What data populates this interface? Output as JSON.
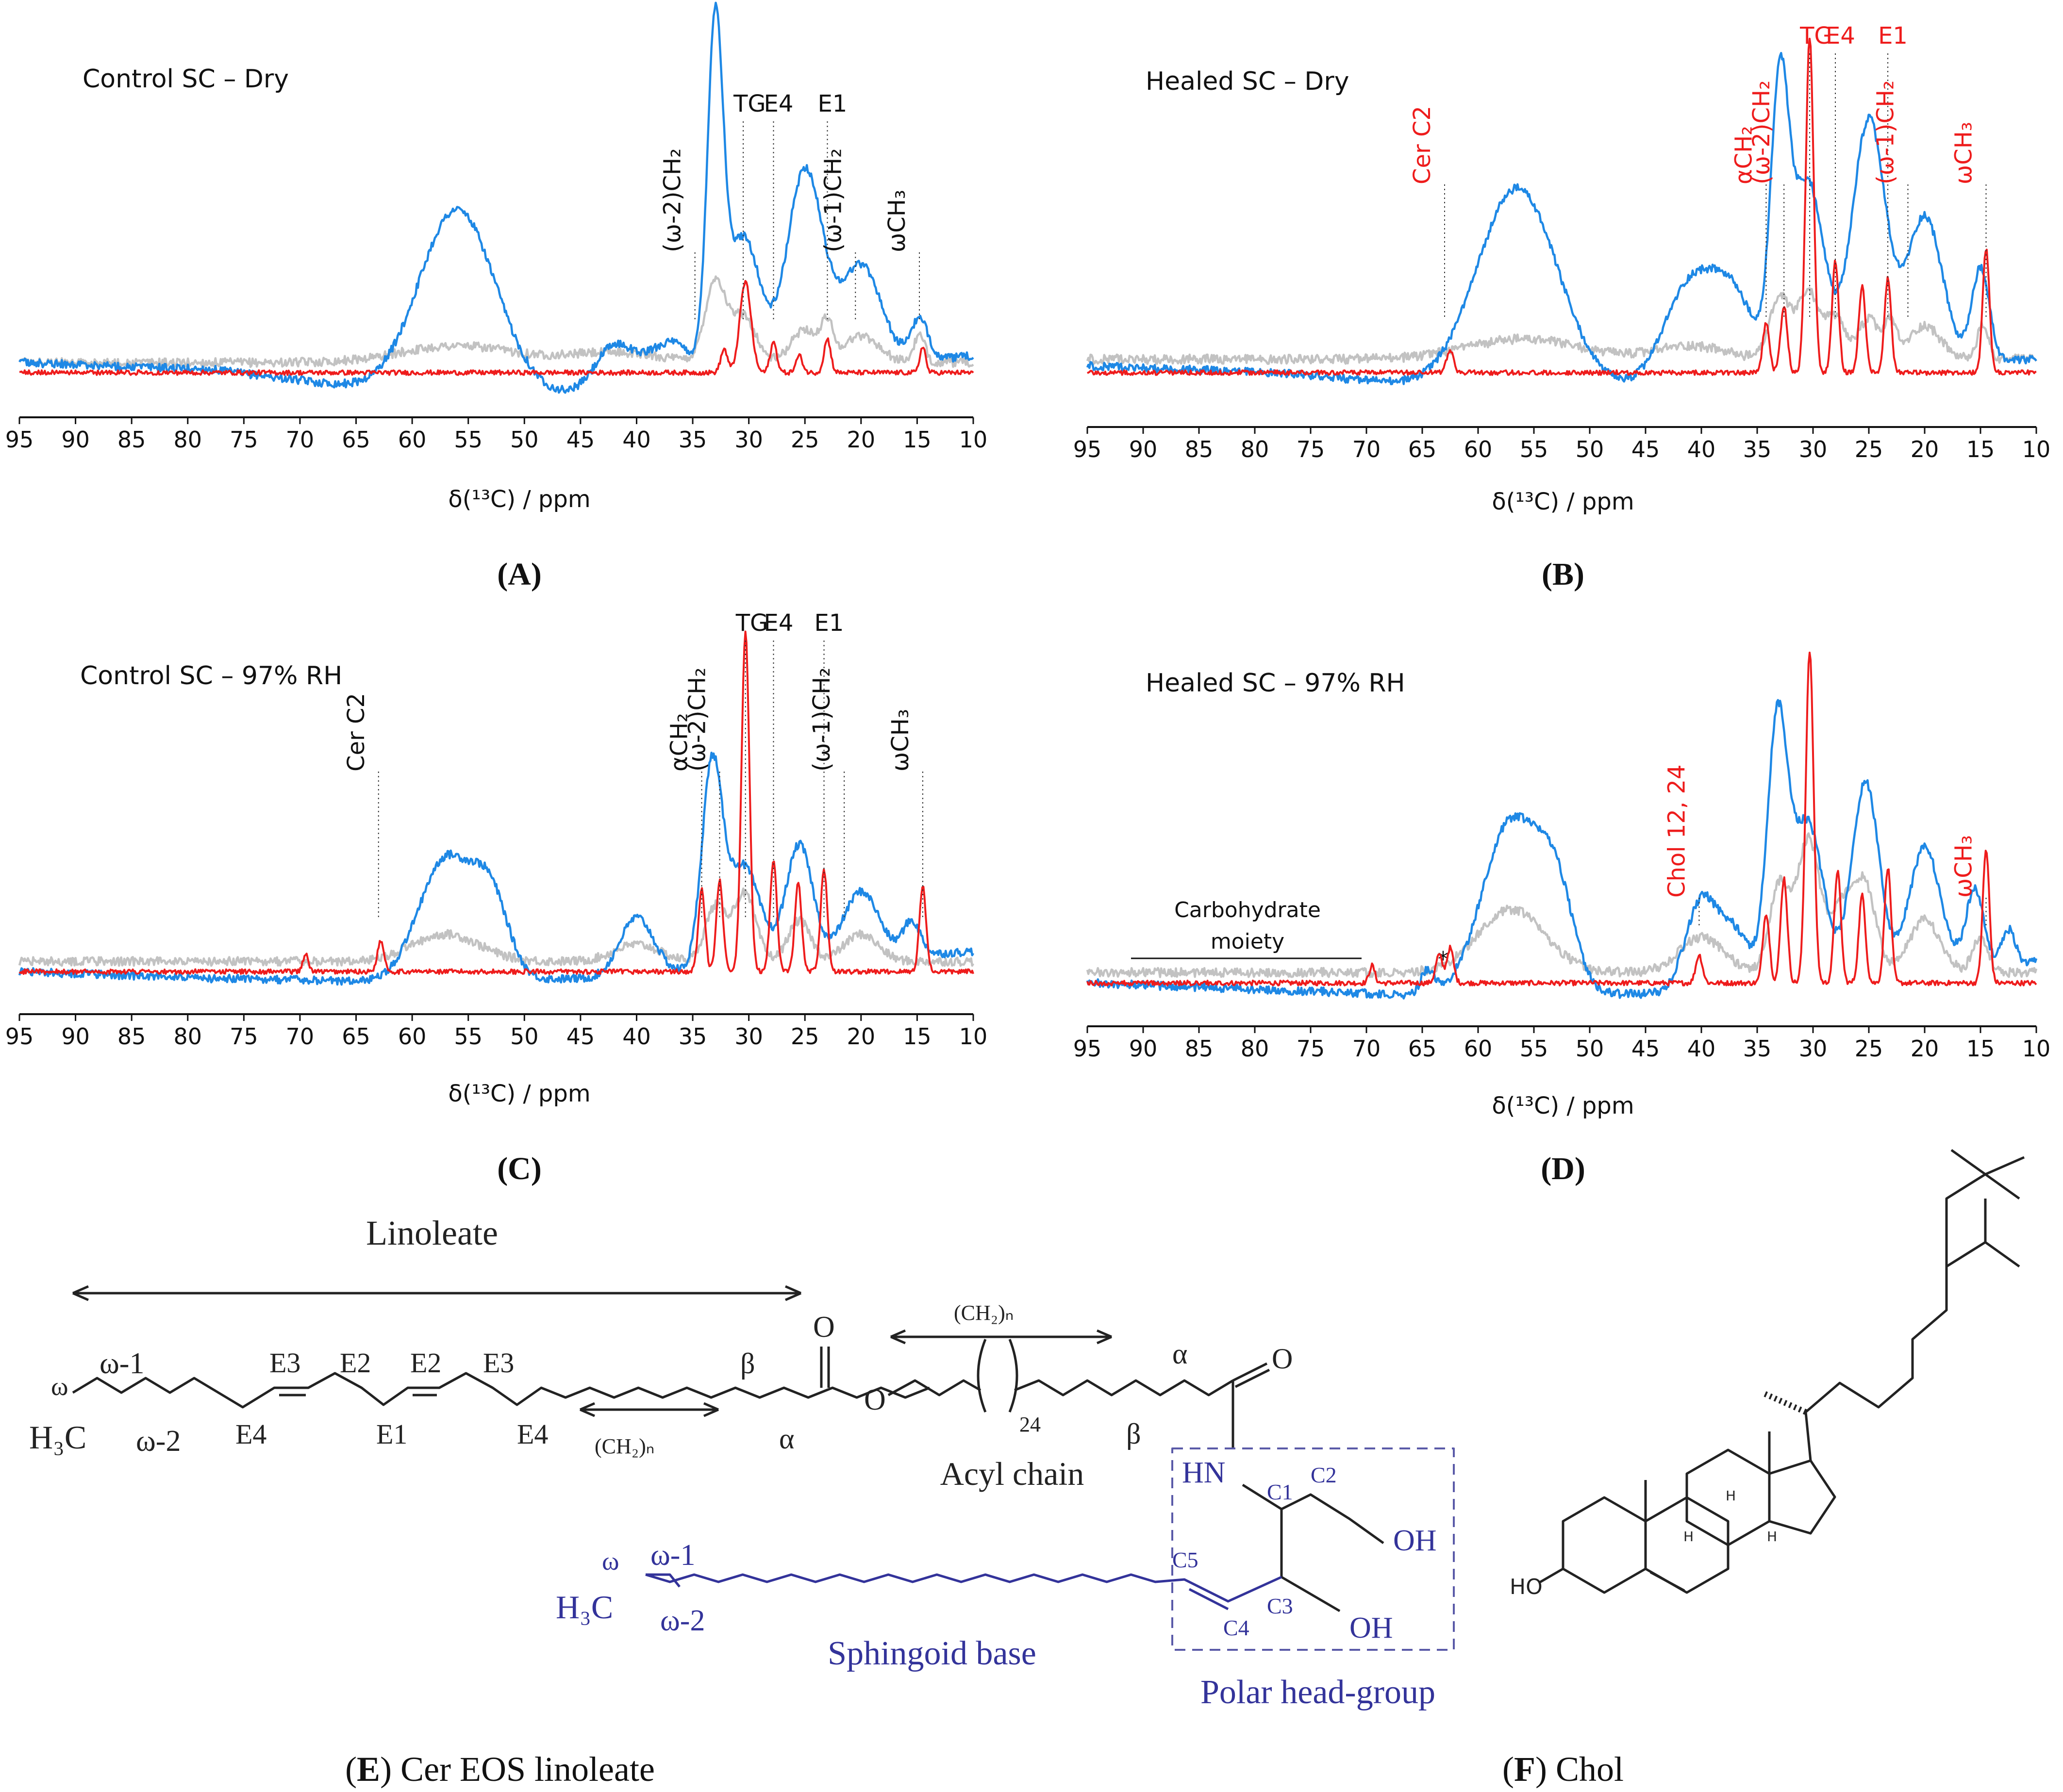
{
  "colors": {
    "blue": "#1e88e5",
    "gray": "#c2c2c2",
    "red": "#ee1c1c",
    "navy": "#33339a",
    "black": "#111111"
  },
  "axis": {
    "xlabel": "δ(¹³C) / ppm"
  },
  "chart_data": [
    {
      "type": "line",
      "id": "A",
      "panel_label": "(A)",
      "title": "Control SC – Dry",
      "xlabel": "δ(¹³C) / ppm",
      "xlim": [
        95,
        10
      ],
      "xticks": [
        "95",
        "90",
        "85",
        "80",
        "75",
        "70",
        "65",
        "60",
        "55",
        "50",
        "45",
        "40",
        "35",
        "30",
        "25",
        "20",
        "15",
        "10"
      ],
      "series": [
        {
          "name": "blue",
          "peaks": [
            [
              56,
              0.55,
              3.4
            ],
            [
              42,
              0.14,
              1.8
            ],
            [
              37,
              0.13,
              2
            ],
            [
              33,
              1.0,
              0.7
            ],
            [
              30.5,
              0.42,
              1.5
            ],
            [
              25,
              0.6,
              1.6
            ],
            [
              20,
              0.3,
              1.8
            ],
            [
              14.8,
              0.12,
              0.8
            ]
          ],
          "base": [
            0.03,
            0.01,
            -0.06,
            -0.07,
            0.0,
            0.05
          ],
          "noise": 0.012
        },
        {
          "name": "gray",
          "peaks": [
            [
              56,
              0.05,
              5
            ],
            [
              42,
              0.03,
              4
            ],
            [
              33,
              0.24,
              0.9
            ],
            [
              30.5,
              0.14,
              1.1
            ],
            [
              25,
              0.1,
              1.2
            ],
            [
              23,
              0.1,
              0.5
            ],
            [
              20,
              0.08,
              1.6
            ],
            [
              14.8,
              0.08,
              0.5
            ]
          ],
          "base": [
            0.03,
            0.03,
            0.03,
            0.03,
            0.03,
            0.03
          ],
          "noise": 0.013
        },
        {
          "name": "red",
          "peaks": [
            [
              32.2,
              0.07,
              0.3
            ],
            [
              30.3,
              0.27,
              0.5
            ],
            [
              27.8,
              0.09,
              0.3
            ],
            [
              25.5,
              0.05,
              0.3
            ],
            [
              23,
              0.1,
              0.3
            ],
            [
              14.5,
              0.08,
              0.25
            ]
          ],
          "base": [
            0,
            0,
            0,
            0,
            0,
            0
          ],
          "noise": 0.007
        }
      ],
      "annotations": [
        {
          "label": "(ω-2)CH₂",
          "color": "black",
          "ppm": 34.8,
          "vertical": true
        },
        {
          "label": "TG",
          "color": "black",
          "ppm": 30.5
        },
        {
          "label": "E4",
          "color": "black",
          "ppm": 27.8
        },
        {
          "label": "E1",
          "color": "black",
          "ppm": 23
        },
        {
          "label": "(ω-1)CH₂",
          "color": "black",
          "ppm": 20.5,
          "vertical": true
        },
        {
          "label": "ωCH₃",
          "color": "black",
          "ppm": 14.8,
          "vertical": true
        }
      ]
    },
    {
      "type": "line",
      "id": "B",
      "panel_label": "(B)",
      "title": "Healed SC – Dry",
      "xlabel": "δ(¹³C) / ppm",
      "xlim": [
        95,
        10
      ],
      "xticks": [
        "95",
        "90",
        "85",
        "80",
        "75",
        "70",
        "65",
        "60",
        "55",
        "50",
        "45",
        "40",
        "35",
        "30",
        "25",
        "20",
        "15",
        "10"
      ],
      "series": [
        {
          "name": "blue",
          "peaks": [
            [
              56.5,
              0.6,
              3.6
            ],
            [
              41,
              0.3,
              2.4
            ],
            [
              37,
              0.22,
              2
            ],
            [
              33,
              0.78,
              0.8
            ],
            [
              30.5,
              0.58,
              1.5
            ],
            [
              25,
              0.75,
              1.5
            ],
            [
              20,
              0.45,
              1.6
            ],
            [
              15,
              0.28,
              0.8
            ]
          ],
          "base": [
            0.02,
            0.0,
            -0.05,
            -0.05,
            0.0,
            0.04
          ],
          "noise": 0.012
        },
        {
          "name": "gray",
          "peaks": [
            [
              56,
              0.06,
              5
            ],
            [
              41,
              0.04,
              3
            ],
            [
              33,
              0.18,
              0.9
            ],
            [
              30.4,
              0.2,
              1
            ],
            [
              28,
              0.12,
              0.8
            ],
            [
              25,
              0.12,
              1
            ],
            [
              23,
              0.1,
              0.5
            ],
            [
              20,
              0.1,
              1.4
            ],
            [
              14.8,
              0.1,
              0.5
            ]
          ],
          "base": [
            0.04,
            0.04,
            0.04,
            0.04,
            0.04,
            0.04
          ],
          "noise": 0.014
        },
        {
          "name": "red",
          "peaks": [
            [
              62.5,
              0.07,
              0.3
            ],
            [
              34.2,
              0.15,
              0.3
            ],
            [
              32.6,
              0.2,
              0.3
            ],
            [
              30.3,
              1.0,
              0.35
            ],
            [
              28,
              0.33,
              0.3
            ],
            [
              25.6,
              0.26,
              0.3
            ],
            [
              23.3,
              0.28,
              0.3
            ],
            [
              14.5,
              0.37,
              0.3
            ]
          ],
          "base": [
            0,
            0,
            0,
            0,
            0,
            0
          ],
          "noise": 0.007
        }
      ],
      "annotations": [
        {
          "label": "Cer C2",
          "color": "red",
          "ppm": 63,
          "vertical": true
        },
        {
          "label": "αCH₂",
          "color": "red",
          "ppm": 34.2,
          "vertical": true
        },
        {
          "label": "(ω-2)CH₂",
          "color": "red",
          "ppm": 32.6,
          "vertical": true
        },
        {
          "label": "TG",
          "color": "red",
          "ppm": 30.3
        },
        {
          "label": "E4",
          "color": "red",
          "ppm": 28
        },
        {
          "label": "E1",
          "color": "red",
          "ppm": 23.3
        },
        {
          "label": "(ω-1)CH₂",
          "color": "red",
          "ppm": 21.5,
          "vertical": true
        },
        {
          "label": "ωCH₃",
          "color": "red",
          "ppm": 14.5,
          "vertical": true
        }
      ]
    },
    {
      "type": "line",
      "id": "C",
      "panel_label": "(C)",
      "title": "Control SC – 97% RH",
      "xlabel": "δ(¹³C) / ppm",
      "xlim": [
        95,
        10
      ],
      "xticks": [
        "95",
        "90",
        "85",
        "80",
        "75",
        "70",
        "65",
        "60",
        "55",
        "50",
        "45",
        "40",
        "35",
        "30",
        "25",
        "20",
        "15",
        "10"
      ],
      "series": [
        {
          "name": "blue",
          "peaks": [
            [
              57,
              0.36,
              2.4
            ],
            [
              53,
              0.22,
              1.6
            ],
            [
              40,
              0.17,
              1.5
            ],
            [
              33.3,
              0.58,
              0.9
            ],
            [
              30.5,
              0.3,
              1.5
            ],
            [
              25.5,
              0.35,
              1.2
            ],
            [
              20,
              0.2,
              1.6
            ],
            [
              15.5,
              0.1,
              0.8
            ]
          ],
          "base": [
            0.0,
            -0.02,
            -0.03,
            -0.02,
            0.02,
            0.06
          ],
          "noise": 0.012
        },
        {
          "name": "gray",
          "peaks": [
            [
              57,
              0.08,
              3
            ],
            [
              40,
              0.05,
              2
            ],
            [
              33,
              0.16,
              0.9
            ],
            [
              30.4,
              0.2,
              1
            ],
            [
              25.5,
              0.12,
              1
            ],
            [
              20,
              0.08,
              1.5
            ]
          ],
          "base": [
            0.03,
            0.03,
            0.03,
            0.03,
            0.03,
            0.03
          ],
          "noise": 0.013
        },
        {
          "name": "red",
          "peaks": [
            [
              69.5,
              0.05,
              0.25
            ],
            [
              62.8,
              0.09,
              0.3
            ],
            [
              34.2,
              0.24,
              0.3
            ],
            [
              32.6,
              0.27,
              0.3
            ],
            [
              30.3,
              1.0,
              0.35
            ],
            [
              27.8,
              0.33,
              0.3
            ],
            [
              25.6,
              0.26,
              0.3
            ],
            [
              23.3,
              0.3,
              0.3
            ],
            [
              14.5,
              0.25,
              0.3
            ]
          ],
          "base": [
            0,
            0,
            0,
            0,
            0,
            0
          ],
          "noise": 0.007
        }
      ],
      "annotations": [
        {
          "label": "Cer C2",
          "color": "black",
          "ppm": 63,
          "vertical": true
        },
        {
          "label": "αCH₂",
          "color": "black",
          "ppm": 34.2,
          "vertical": true
        },
        {
          "label": "(ω-2)CH₂",
          "color": "black",
          "ppm": 32.6,
          "vertical": true
        },
        {
          "label": "TG",
          "color": "black",
          "ppm": 30.3
        },
        {
          "label": "E4",
          "color": "black",
          "ppm": 27.8
        },
        {
          "label": "E1",
          "color": "black",
          "ppm": 23.3
        },
        {
          "label": "(ω-1)CH₂",
          "color": "black",
          "ppm": 21.5,
          "vertical": true
        },
        {
          "label": "ωCH₃",
          "color": "black",
          "ppm": 14.5,
          "vertical": true
        }
      ]
    },
    {
      "type": "line",
      "id": "D",
      "panel_label": "(D)",
      "title": "Healed SC – 97% RH",
      "xlabel": "δ(¹³C) / ppm",
      "xlim": [
        95,
        10
      ],
      "xticks": [
        "95",
        "90",
        "85",
        "80",
        "75",
        "70",
        "65",
        "60",
        "55",
        "50",
        "45",
        "40",
        "35",
        "30",
        "25",
        "20",
        "15",
        "10"
      ],
      "series": [
        {
          "name": "blue",
          "peaks": [
            [
              64.5,
              0.07,
              0.6
            ],
            [
              57,
              0.5,
              2.6
            ],
            [
              53,
              0.25,
              1.6
            ],
            [
              40,
              0.25,
              1.4
            ],
            [
              37,
              0.15,
              1.4
            ],
            [
              33.2,
              0.72,
              0.9
            ],
            [
              30.5,
              0.45,
              1.4
            ],
            [
              25.3,
              0.55,
              1.2
            ],
            [
              20,
              0.35,
              1.4
            ],
            [
              15.5,
              0.22,
              0.8
            ],
            [
              12.5,
              0.1,
              0.6
            ]
          ],
          "base": [
            0.0,
            -0.02,
            -0.04,
            -0.03,
            0.02,
            0.06
          ],
          "noise": 0.012
        },
        {
          "name": "gray",
          "peaks": [
            [
              57,
              0.18,
              3
            ],
            [
              40,
              0.1,
              2
            ],
            [
              33,
              0.25,
              0.9
            ],
            [
              30.4,
              0.38,
              1
            ],
            [
              27.5,
              0.18,
              1
            ],
            [
              25.4,
              0.25,
              1
            ],
            [
              20,
              0.15,
              1.4
            ],
            [
              15,
              0.1,
              0.7
            ]
          ],
          "base": [
            0.03,
            0.03,
            0.03,
            0.03,
            0.03,
            0.03
          ],
          "noise": 0.013
        },
        {
          "name": "red",
          "peaks": [
            [
              69.5,
              0.05,
              0.25
            ],
            [
              63.5,
              0.08,
              0.3
            ],
            [
              62.5,
              0.1,
              0.3
            ],
            [
              40.2,
              0.08,
              0.3
            ],
            [
              34.2,
              0.2,
              0.3
            ],
            [
              32.6,
              0.3,
              0.3
            ],
            [
              30.3,
              0.95,
              0.35
            ],
            [
              27.8,
              0.32,
              0.3
            ],
            [
              25.6,
              0.25,
              0.3
            ],
            [
              23.3,
              0.33,
              0.3
            ],
            [
              14.5,
              0.38,
              0.3
            ]
          ],
          "base": [
            0,
            0,
            0,
            0,
            0,
            0
          ],
          "noise": 0.007
        }
      ],
      "annotations": [
        {
          "label": "Chol 12, 24",
          "color": "red",
          "ppm": 40.2,
          "vertical": true
        },
        {
          "label": "ωCH₃",
          "color": "red",
          "ppm": 14.5,
          "vertical": true
        }
      ],
      "region_label": [
        "Carbohydrate",
        "moiety"
      ],
      "asterisk": "*"
    }
  ],
  "structure_E": {
    "caption_letter": "E",
    "caption_rest": " Cer EOS linoleate",
    "linoleate": "Linoleate",
    "acyl_chain": "Acyl chain",
    "sphingoid_base": "Sphingoid base",
    "polar_head": "Polar head-group",
    "ch2n": "(CH₂)ₙ",
    "subscript_24": "24",
    "h3c": "H₃C",
    "omega": "ω",
    "omega1": "ω-1",
    "omega2": "ω-2",
    "e1": "E1",
    "e2": "E2",
    "e3": "E3",
    "e4": "E4",
    "alpha": "α",
    "beta": "β",
    "o": "O",
    "hn": "HN",
    "oh": "OH",
    "c1": "C1",
    "c2": "C2",
    "c3": "C3",
    "c4": "C4",
    "c5": "C5"
  },
  "structure_F": {
    "caption_letter": "F",
    "caption_rest": " Chol",
    "ho": "HO",
    "h": "H"
  }
}
